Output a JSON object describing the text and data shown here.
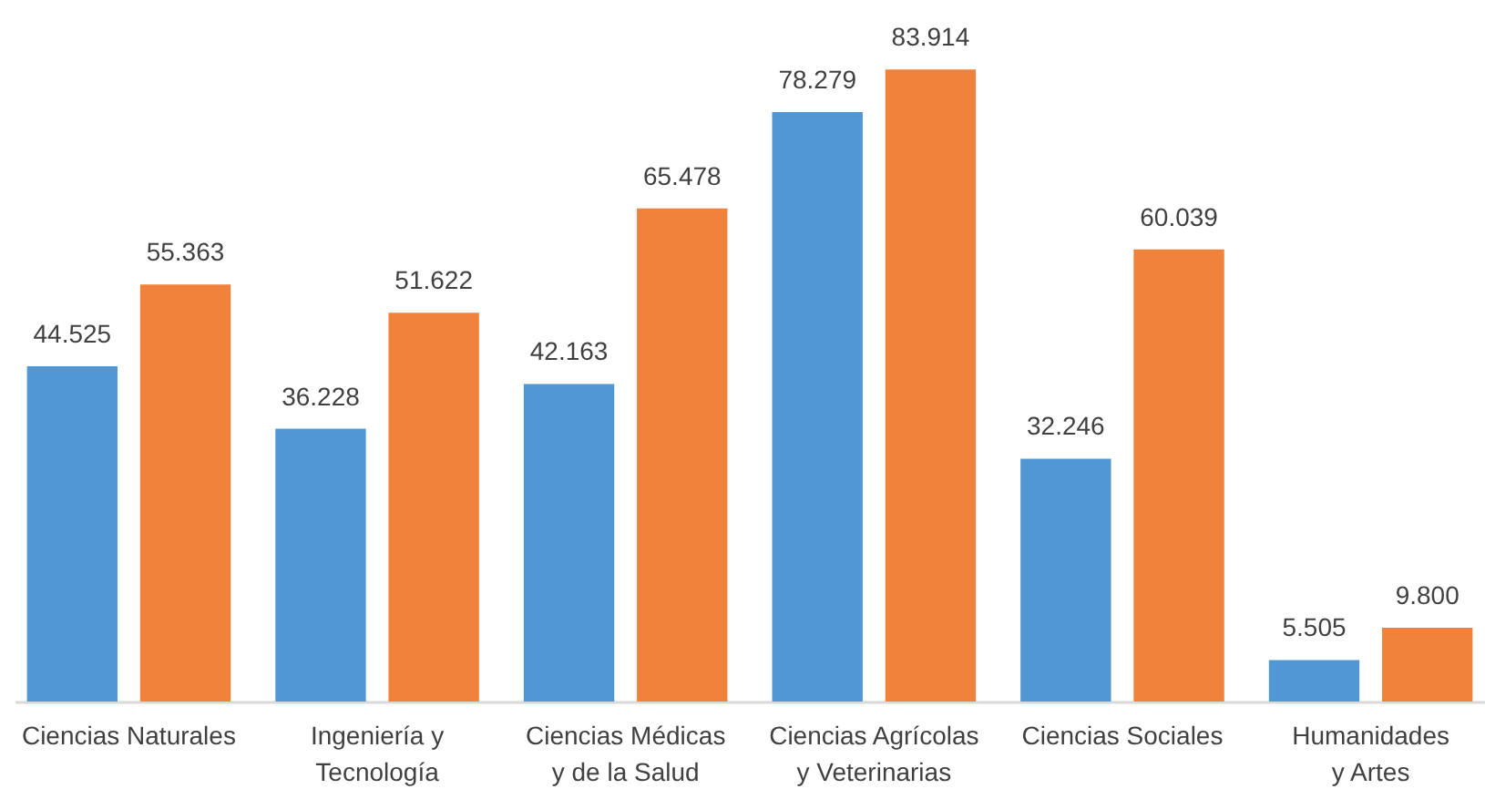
{
  "chart_data": {
    "type": "bar",
    "categories": [
      "Ciencias Naturales",
      "Ingeniería y\nTecnología",
      "Ciencias Médicas\ny de la Salud",
      "Ciencias Agrícolas\ny Veterinarias",
      "Ciencias Sociales",
      "Humanidades\ny Artes"
    ],
    "series": [
      {
        "color": "#5097d3",
        "values": [
          44525,
          36228,
          42163,
          78279,
          32246,
          5505
        ],
        "value_labels": [
          "44.525",
          "36.228",
          "42.163",
          "78.279",
          "32.246",
          "5.505"
        ]
      },
      {
        "color": "#f0823c",
        "values": [
          55363,
          51622,
          65478,
          83914,
          60039,
          9800
        ],
        "value_labels": [
          "55.363",
          "51.622",
          "65.478",
          "83.914",
          "60.039",
          "9.800"
        ]
      }
    ],
    "tick_labels": "x"
  }
}
